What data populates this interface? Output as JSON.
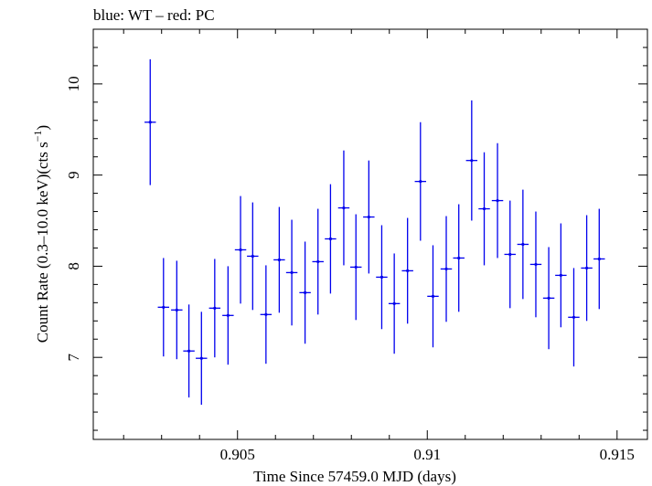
{
  "chart_data": {
    "type": "scatter",
    "title": "blue: WT – red: PC",
    "xlabel": "Time Since 57459.0 MJD (days)",
    "ylabel": "Count Rate (0.3–10.0 keV)(cts s⁻¹)",
    "ylabel_main": "Count Rate (0.3–10.0 keV)(cts s",
    "ylabel_sup": "−1",
    "ylabel_end": ")",
    "xlim": [
      0.9012,
      0.9158
    ],
    "ylim": [
      6.1,
      10.6
    ],
    "x_ticks": [
      0.905,
      0.91,
      0.915
    ],
    "x_tick_labels": [
      "0.905",
      "0.91",
      "0.915"
    ],
    "y_ticks": [
      7,
      8,
      9,
      10
    ],
    "y_tick_labels": [
      "7",
      "8",
      "9",
      "10"
    ],
    "grid": false,
    "series": [
      {
        "name": "WT",
        "color": "#0000ee",
        "x_half_width": 0.00015,
        "points": [
          {
            "x": 0.9027,
            "y": 9.58,
            "err": 0.69
          },
          {
            "x": 0.90305,
            "y": 7.55,
            "err": 0.54
          },
          {
            "x": 0.9034,
            "y": 7.52,
            "err": 0.54
          },
          {
            "x": 0.90372,
            "y": 7.07,
            "err": 0.51
          },
          {
            "x": 0.90405,
            "y": 6.99,
            "err": 0.51
          },
          {
            "x": 0.9044,
            "y": 7.54,
            "err": 0.54
          },
          {
            "x": 0.90475,
            "y": 7.46,
            "err": 0.54
          },
          {
            "x": 0.90508,
            "y": 8.18,
            "err": 0.59
          },
          {
            "x": 0.9054,
            "y": 8.11,
            "err": 0.59
          },
          {
            "x": 0.90575,
            "y": 7.47,
            "err": 0.54
          },
          {
            "x": 0.9061,
            "y": 8.07,
            "err": 0.58
          },
          {
            "x": 0.90643,
            "y": 7.93,
            "err": 0.58
          },
          {
            "x": 0.90678,
            "y": 7.71,
            "err": 0.56
          },
          {
            "x": 0.90712,
            "y": 8.05,
            "err": 0.58
          },
          {
            "x": 0.90745,
            "y": 8.3,
            "err": 0.6
          },
          {
            "x": 0.9078,
            "y": 8.64,
            "err": 0.63
          },
          {
            "x": 0.90812,
            "y": 7.99,
            "err": 0.58
          },
          {
            "x": 0.90846,
            "y": 8.54,
            "err": 0.62
          },
          {
            "x": 0.9088,
            "y": 7.88,
            "err": 0.57
          },
          {
            "x": 0.90913,
            "y": 7.59,
            "err": 0.55
          },
          {
            "x": 0.90948,
            "y": 7.95,
            "err": 0.58
          },
          {
            "x": 0.90982,
            "y": 8.93,
            "err": 0.65
          },
          {
            "x": 0.91015,
            "y": 7.67,
            "err": 0.56
          },
          {
            "x": 0.9105,
            "y": 7.97,
            "err": 0.58
          },
          {
            "x": 0.91083,
            "y": 8.09,
            "err": 0.59
          },
          {
            "x": 0.91117,
            "y": 9.16,
            "err": 0.66
          },
          {
            "x": 0.9115,
            "y": 8.63,
            "err": 0.62
          },
          {
            "x": 0.91185,
            "y": 8.72,
            "err": 0.63
          },
          {
            "x": 0.91218,
            "y": 8.13,
            "err": 0.59
          },
          {
            "x": 0.91252,
            "y": 8.24,
            "err": 0.6
          },
          {
            "x": 0.91286,
            "y": 8.02,
            "err": 0.58
          },
          {
            "x": 0.9132,
            "y": 7.65,
            "err": 0.56
          },
          {
            "x": 0.91352,
            "y": 7.9,
            "err": 0.57
          },
          {
            "x": 0.91386,
            "y": 7.44,
            "err": 0.54
          },
          {
            "x": 0.9142,
            "y": 7.98,
            "err": 0.58
          },
          {
            "x": 0.91453,
            "y": 8.08,
            "err": 0.55
          }
        ]
      }
    ]
  }
}
